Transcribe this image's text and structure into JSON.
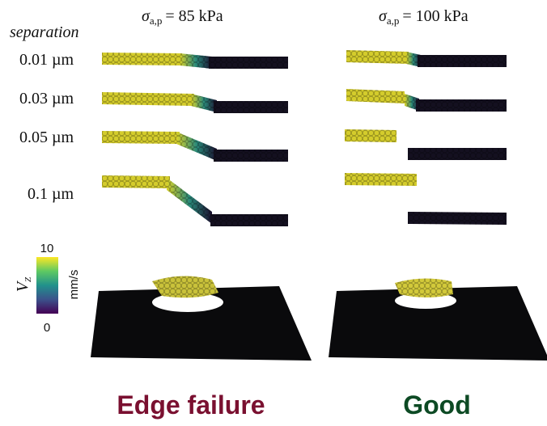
{
  "columns": [
    {
      "symbol": "σ",
      "subscript": "a,p",
      "value": "= 85 kPa",
      "caption": "Edge failure"
    },
    {
      "symbol": "σ",
      "subscript": "a,p",
      "value": "= 100 kPa",
      "caption": "Good"
    }
  ],
  "row_header": "separation",
  "rows": [
    "0.01 µm",
    "0.03 µm",
    "0.05 µm",
    "0.1 µm"
  ],
  "colorbar": {
    "max": "10",
    "min": "0",
    "unit": "mm/s",
    "symbol": "V",
    "subscript": "Z"
  }
}
